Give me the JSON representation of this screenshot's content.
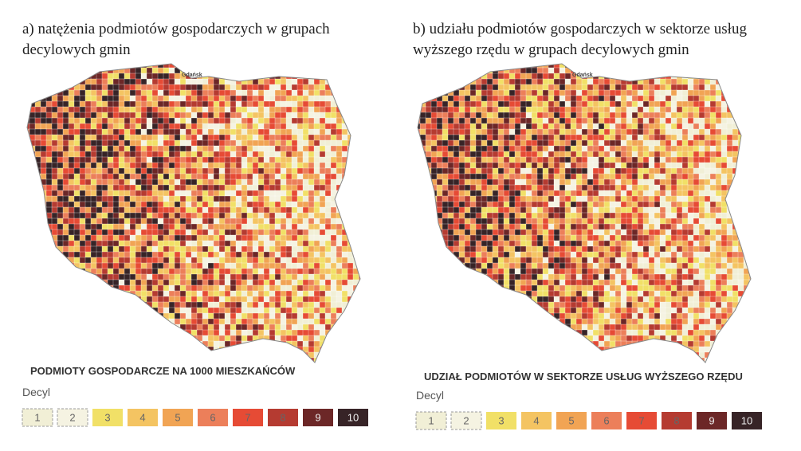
{
  "maps": [
    {
      "title": "a) natężenia podmiotów gospodarczych w grupach decylowych gmin",
      "city": "Gdańsk",
      "legend_title": "PODMIOTY GOSPODARCZE NA 1000 MIESZKAŃCÓW",
      "legend_label": "Decyl",
      "legend": [
        {
          "label": "1",
          "color": "#f1efd6"
        },
        {
          "label": "2",
          "color": "#f5f3e2"
        },
        {
          "label": "3",
          "color": "#f1e067"
        },
        {
          "label": "4",
          "color": "#f4c462"
        },
        {
          "label": "5",
          "color": "#f1a454"
        },
        {
          "label": "6",
          "color": "#ec7f5a"
        },
        {
          "label": "7",
          "color": "#e64b35"
        },
        {
          "label": "8",
          "color": "#b53b31"
        },
        {
          "label": "9",
          "color": "#6c2727"
        },
        {
          "label": "10",
          "color": "#372427"
        }
      ]
    },
    {
      "title": "b) udziału podmiotów gospodarczych w sektorze usług wyższego rzędu w grupach decylowych gmin",
      "city": "Gdańsk",
      "legend_title": "UDZIAŁ PODMIOTÓW W SEKTORZE USŁUG WYŻSZEGO RZĘDU",
      "legend_label": "Decyl",
      "legend": [
        {
          "label": "1",
          "color": "#f1efd6"
        },
        {
          "label": "2",
          "color": "#f5f3e2"
        },
        {
          "label": "3",
          "color": "#f1e067"
        },
        {
          "label": "4",
          "color": "#f4c462"
        },
        {
          "label": "5",
          "color": "#f1a454"
        },
        {
          "label": "6",
          "color": "#ec7f5a"
        },
        {
          "label": "7",
          "color": "#e64b35"
        },
        {
          "label": "8",
          "color": "#b53b31"
        },
        {
          "label": "9",
          "color": "#6c2727"
        },
        {
          "label": "10",
          "color": "#372427"
        }
      ]
    }
  ]
}
